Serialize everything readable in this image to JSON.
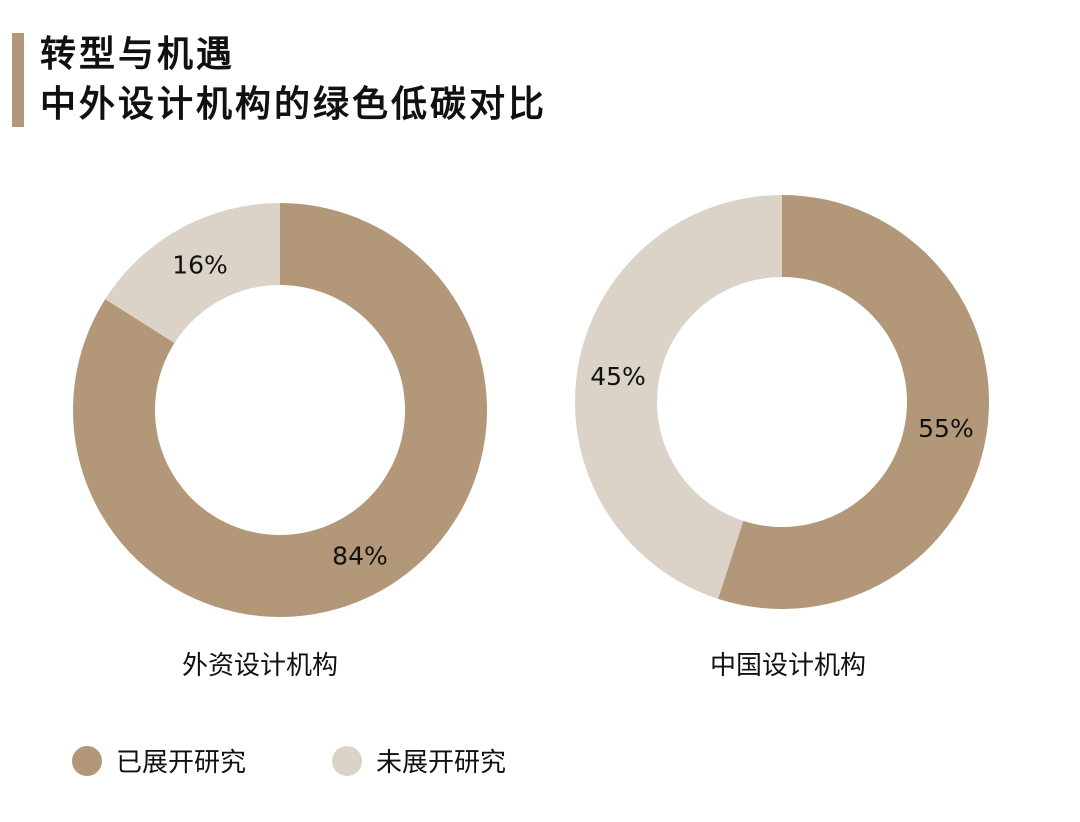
{
  "title": {
    "line1": "转型与机遇",
    "line2": "中外设计机构的绿色低碳对比"
  },
  "colors": {
    "accent": "#b29778",
    "light": "#dbd2c8",
    "text": "#111111"
  },
  "chart_data": [
    {
      "type": "pie",
      "name": "外资设计机构",
      "categories": [
        "已展开研究",
        "未展开研究"
      ],
      "values": [
        84,
        16
      ],
      "labels": [
        "84%",
        "16%"
      ],
      "donut": true
    },
    {
      "type": "pie",
      "name": "中国设计机构",
      "categories": [
        "已展开研究",
        "未展开研究"
      ],
      "values": [
        55,
        45
      ],
      "labels": [
        "55%",
        "45%"
      ],
      "donut": true
    }
  ],
  "legend": [
    {
      "label": "已展开研究",
      "color": "#b29778"
    },
    {
      "label": "未展开研究",
      "color": "#dbd2c8"
    }
  ],
  "legend_position": "bottom-left"
}
